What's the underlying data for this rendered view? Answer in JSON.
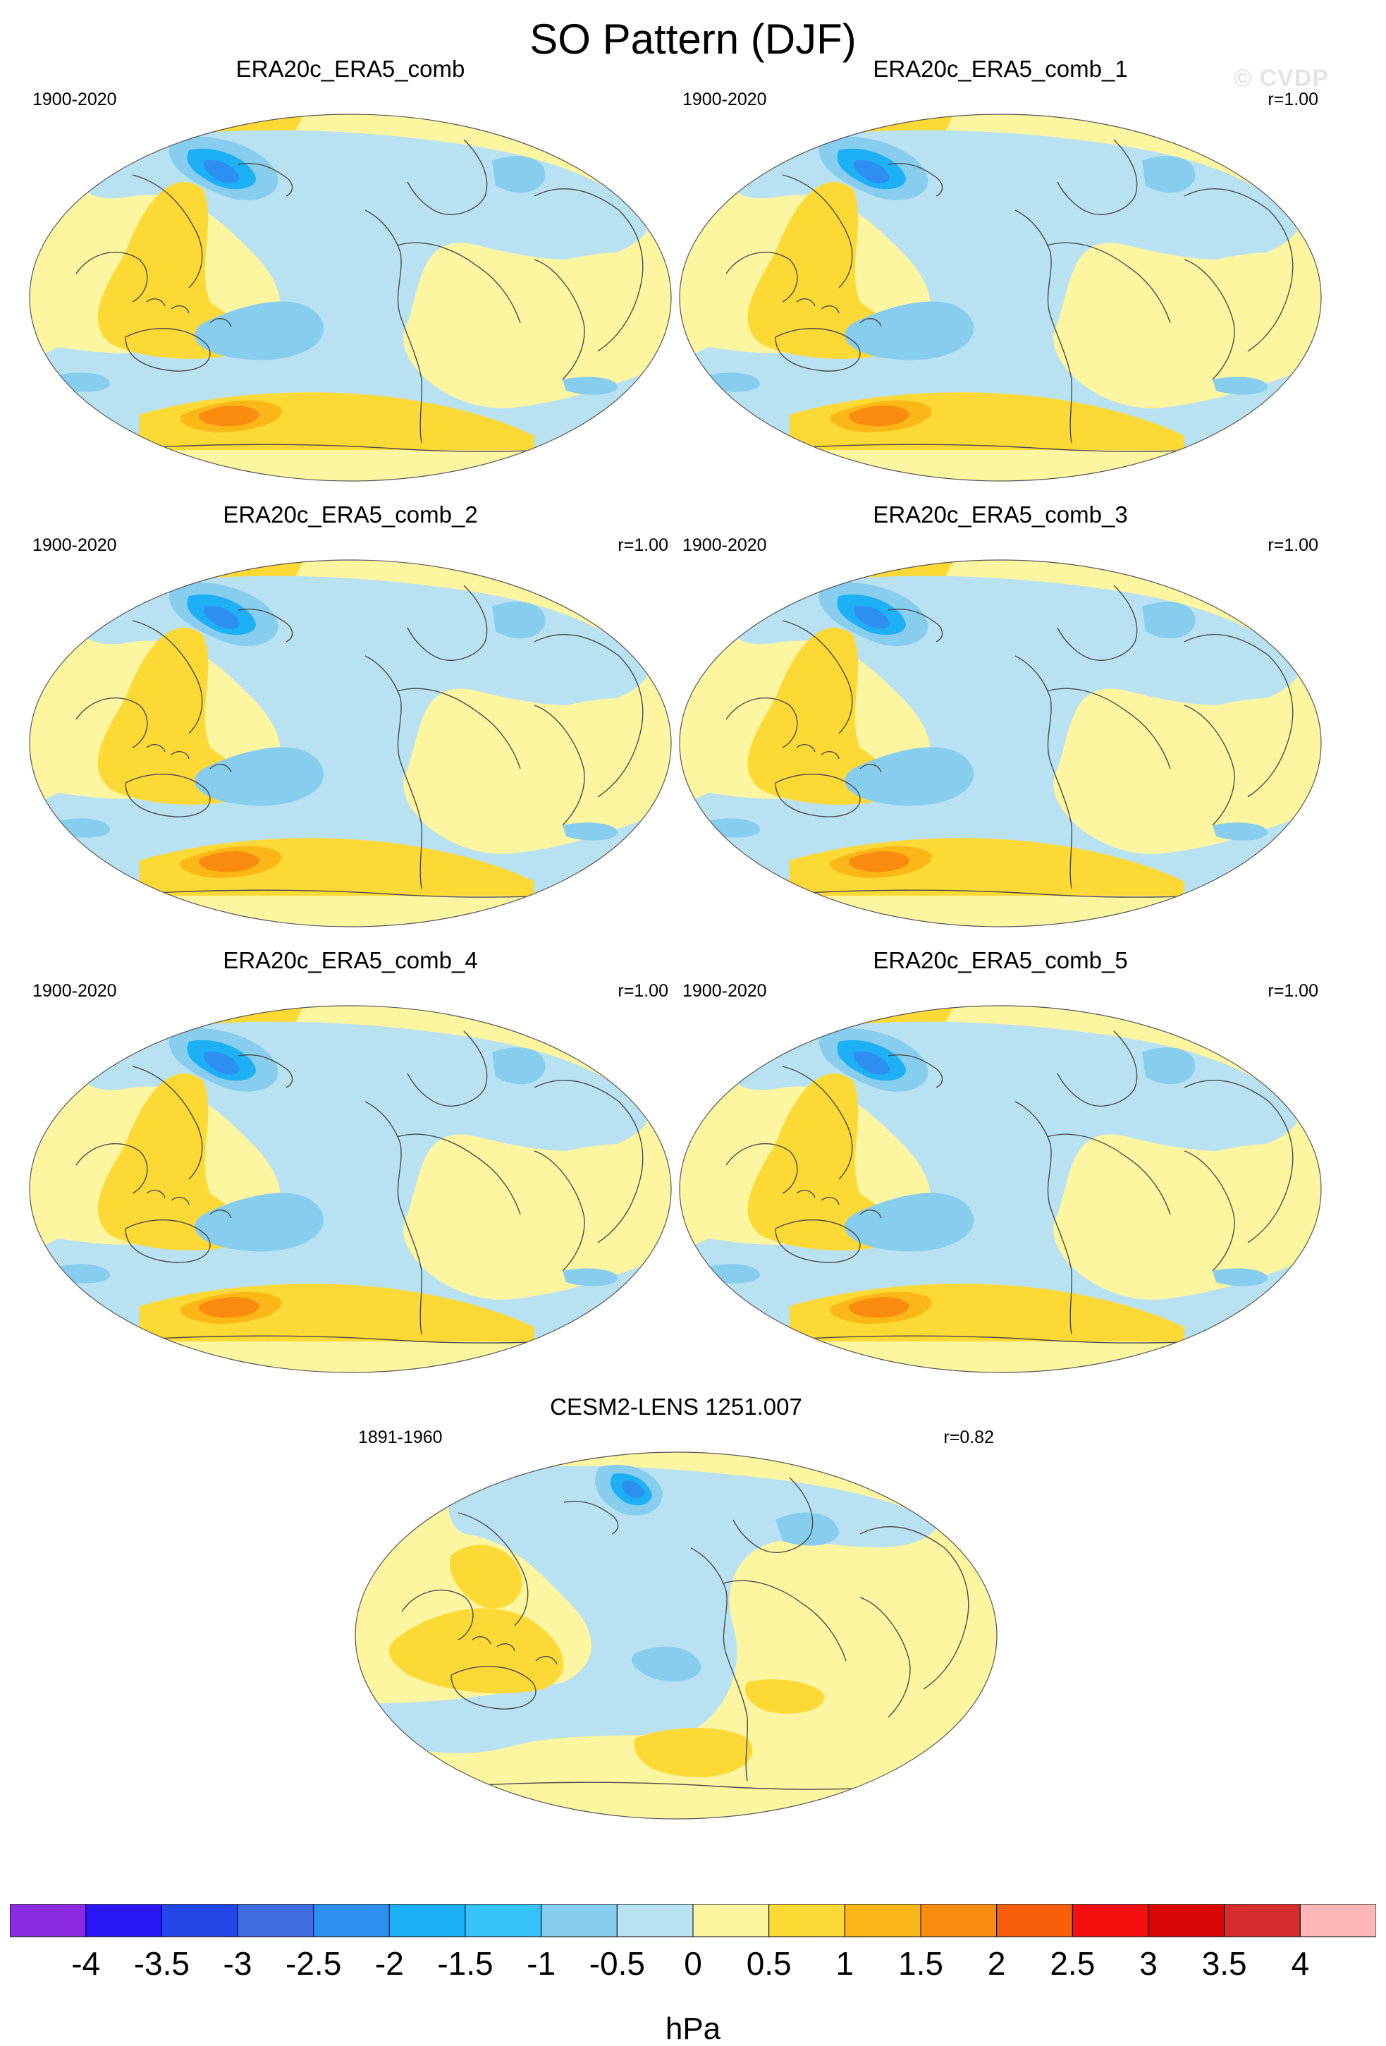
{
  "title": "SO Pattern (DJF)",
  "watermark": "© CVDP",
  "chart_data": [
    {
      "type": "heatmap",
      "title": "ERA20c_ERA5_comb",
      "period": "1900-2020",
      "correlation": "",
      "variant": "obs"
    },
    {
      "type": "heatmap",
      "title": "ERA20c_ERA5_comb_1",
      "period": "1900-2020",
      "correlation": "r=1.00",
      "variant": "obs"
    },
    {
      "type": "heatmap",
      "title": "ERA20c_ERA5_comb_2",
      "period": "1900-2020",
      "correlation": "r=1.00",
      "variant": "obs"
    },
    {
      "type": "heatmap",
      "title": "ERA20c_ERA5_comb_3",
      "period": "1900-2020",
      "correlation": "r=1.00",
      "variant": "obs"
    },
    {
      "type": "heatmap",
      "title": "ERA20c_ERA5_comb_4",
      "period": "1900-2020",
      "correlation": "r=1.00",
      "variant": "obs"
    },
    {
      "type": "heatmap",
      "title": "ERA20c_ERA5_comb_5",
      "period": "1900-2020",
      "correlation": "r=1.00",
      "variant": "obs"
    },
    {
      "type": "heatmap",
      "title": "CESM2-LENS 1251.007",
      "period": "1891-1960",
      "correlation": "r=0.82",
      "variant": "model"
    }
  ],
  "colorbar": {
    "units": "hPa",
    "ticks": [
      "-4",
      "-3.5",
      "-3",
      "-2.5",
      "-2",
      "-1.5",
      "-1",
      "-0.5",
      "0",
      "0.5",
      "1",
      "1.5",
      "2",
      "2.5",
      "3",
      "3.5",
      "4"
    ],
    "colors": [
      "#8a2be2",
      "#2a17f5",
      "#2346e6",
      "#3f6de0",
      "#2d8ff0",
      "#1eb0f5",
      "#36c3f7",
      "#87cdee",
      "#b8e2f2",
      "#fdf59f",
      "#fdd935",
      "#fbb718",
      "#f98c0f",
      "#f85f0a",
      "#f51010",
      "#d90606",
      "#d62e2e",
      "#feb6b6"
    ]
  }
}
